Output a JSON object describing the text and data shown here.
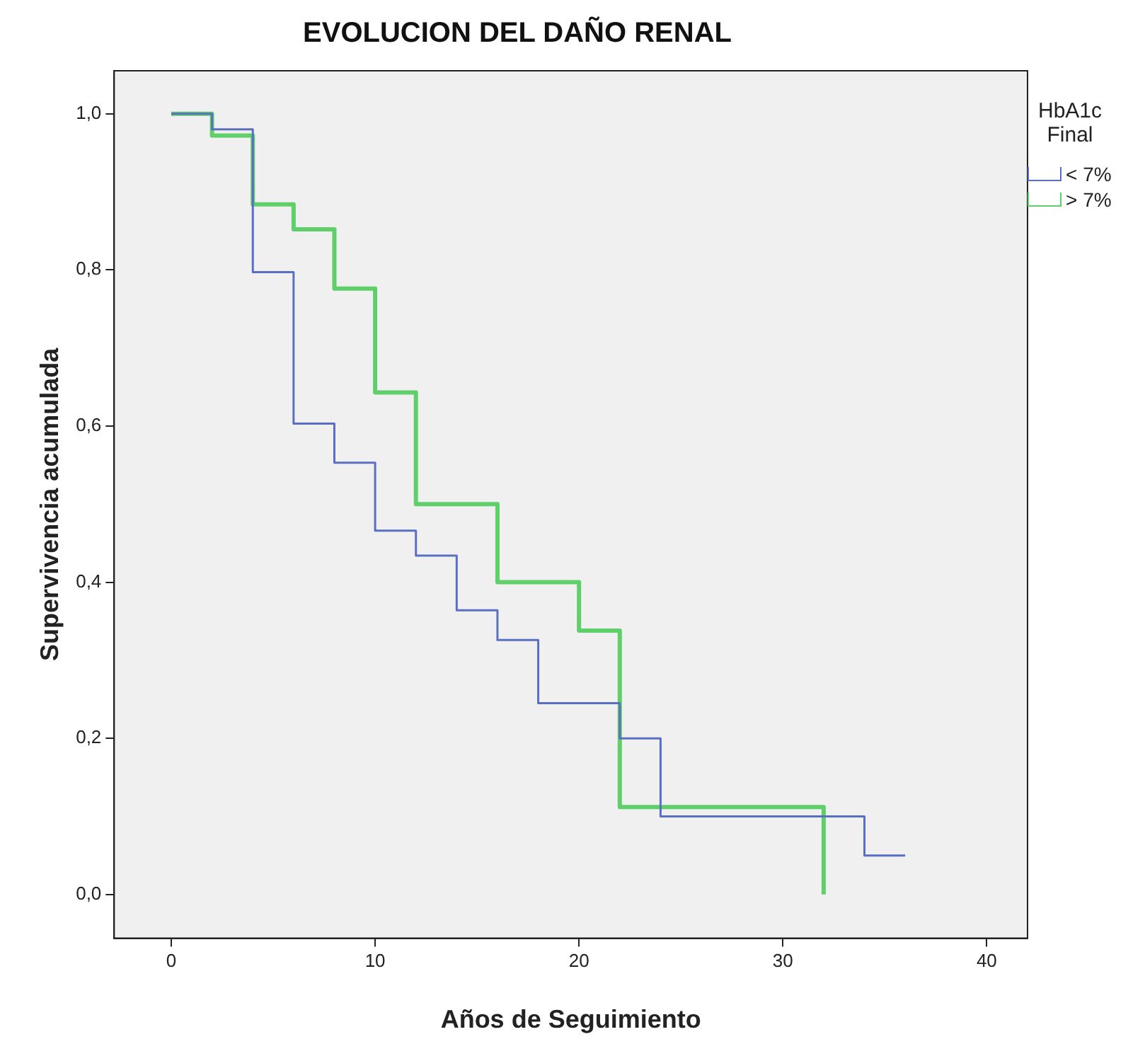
{
  "chart_data": {
    "type": "step",
    "title": "EVOLUCION DEL DAÑO RENAL",
    "xlabel": "Años de Seguimiento",
    "ylabel": "Supervivencia acumulada",
    "legend_title": "HbA1c Final",
    "legend": "top right",
    "grid": false,
    "marker": "none",
    "xlim": [
      -2.8,
      42
    ],
    "xticks": [
      0,
      10,
      20,
      30,
      40
    ],
    "ylim": [
      -0.056,
      1.055
    ],
    "yticks": [
      {
        "value": 0,
        "label": "0,0"
      },
      {
        "value": 0.2,
        "label": "0,2"
      },
      {
        "value": 0.4,
        "label": "0,4"
      },
      {
        "value": 0.6,
        "label": "0,6"
      },
      {
        "value": 0.8,
        "label": "0,8"
      },
      {
        "value": 1,
        "label": "1,0"
      }
    ],
    "series": [
      {
        "name": "< 7%",
        "color": "#5b6fc2",
        "x": [
          0,
          2,
          4,
          6,
          8,
          10,
          12,
          14,
          16,
          18,
          22,
          24,
          34,
          36
        ],
        "values": [
          1,
          0.98,
          0.797,
          0.603,
          0.553,
          0.466,
          0.434,
          0.364,
          0.326,
          0.245,
          0.2,
          0.1,
          0.05,
          0.05
        ]
      },
      {
        "name": "> 7%",
        "color": "#5fcf6a",
        "x": [
          0,
          2,
          4,
          6,
          8,
          10,
          12,
          16,
          20,
          22,
          32
        ],
        "values": [
          1,
          0.972,
          0.884,
          0.852,
          0.776,
          0.643,
          0.5,
          0.4,
          0.338,
          0.112,
          0
        ]
      }
    ]
  }
}
